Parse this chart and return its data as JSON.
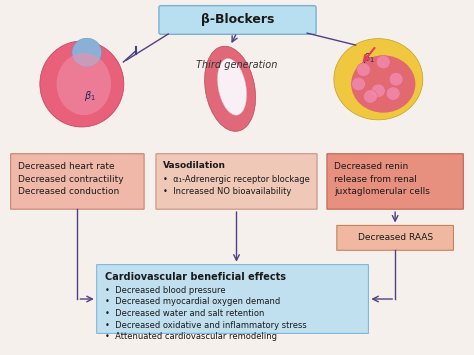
{
  "title": "β-Blockers",
  "title_box_color": "#b8dff0",
  "title_border_color": "#7ab0d0",
  "third_gen_label": "Third generation",
  "bg_color": "#f5f0eb",
  "left_box": {
    "text": "Decreased heart rate\nDecreased contractility\nDecreased conduction",
    "bg": "#f0b8a8",
    "border": "#c88070"
  },
  "mid_box": {
    "title": "Vasodilation",
    "bullets": "•  α₁-Adrenergic receptor blockage\n•  Increased NO bioavailability",
    "bg": "#f0c8b8",
    "border": "#c89080"
  },
  "right_box": {
    "text": "Decreased renin\nrelease from renal\njuxtaglomerular cells",
    "bg": "#e89080",
    "border": "#c06050"
  },
  "raas_box": {
    "text": "Decreased RAAS",
    "bg": "#f0b8a0",
    "border": "#c88060"
  },
  "bottom_box": {
    "title": "Cardiovascular beneficial effects",
    "bullets": "•  Decreased blood pressure\n•  Decreased myocardial oxygen demand\n•  Decreased water and salt retention\n•  Decreased oxidative and inflammatory stress\n•  Attenuated cardiovascular remodeling",
    "bg": "#c0e0f0",
    "border": "#80b8d8"
  },
  "arrow_color": "#504080",
  "line_color": "#504080"
}
